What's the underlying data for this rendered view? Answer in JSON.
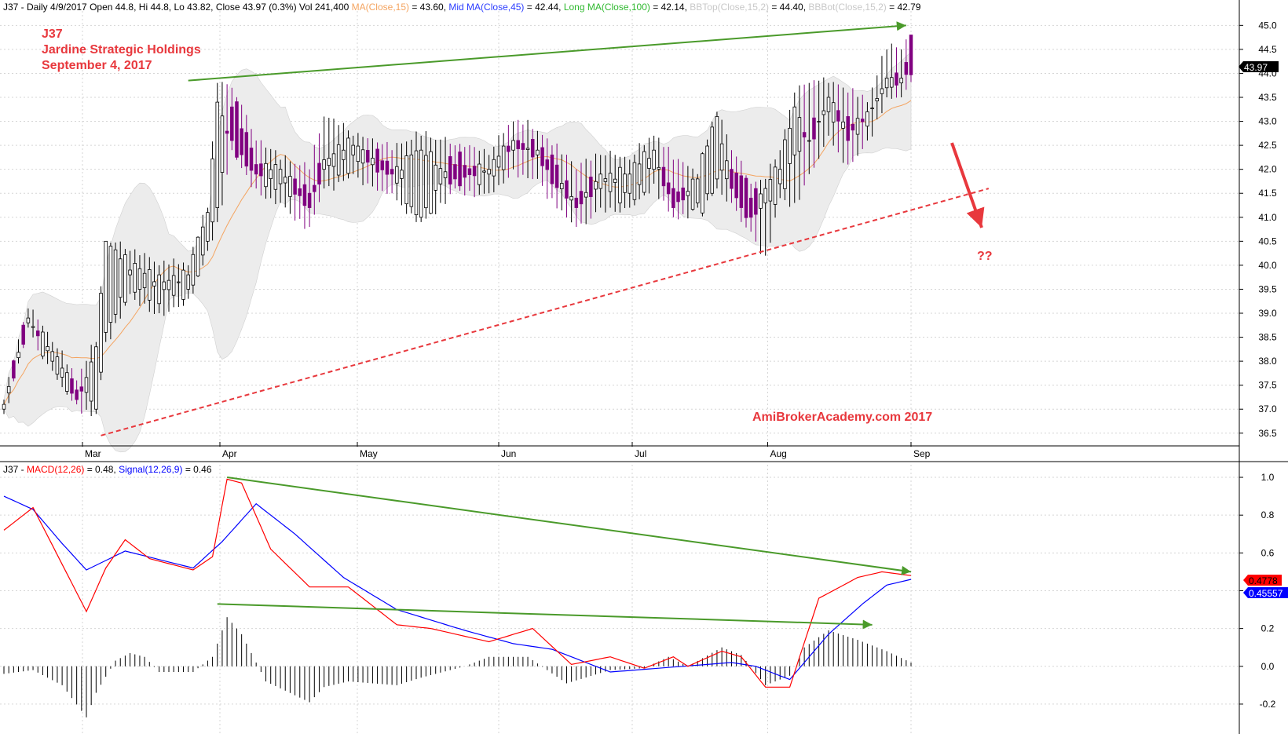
{
  "header": {
    "prefix": "J37 - Daily 4/9/2017 Open 44.8, Hi 44.8, Lo 43.82, Close 43.97 (0.3%) Vol 241,400",
    "ma_label": "MA(Close,15)",
    "ma_value": " = 43.60, ",
    "mid_ma_label": "Mid MA(Close,45)",
    "mid_ma_value": " = 42.44, ",
    "long_ma_label": "Long MA(Close,100)",
    "long_ma_value": " = 42.14, ",
    "bbtop_label": "BBTop(Close,15,2)",
    "bbtop_value": " = 44.40, ",
    "bbbot_label": "BBBot(Close,15,2)",
    "bbbot_value": " = 42.79"
  },
  "annotations": {
    "ticker": "J37",
    "company": "Jardine Strategic Holdings",
    "date": "September 4, 2017",
    "question": "??",
    "watermark": "AmiBrokerAcademy.com  2017"
  },
  "macd_header": {
    "prefix": "J37 - ",
    "macd_label": "MACD(12,26)",
    "macd_value": " = 0.48, ",
    "signal_label": "Signal(12,26,9)",
    "signal_value": " = 0.46"
  },
  "price_badge": "43.97",
  "macd_badge": "0.4778",
  "signal_badge": "0.45557",
  "colors": {
    "up_candle": "#ffffff",
    "down_candle": "#800080",
    "ma": "#f4a460",
    "band_fill": "#ececec",
    "trend_green": "#4a9a2a",
    "trend_red": "#e8383d",
    "macd": "#ff0000",
    "signal": "#0000ff",
    "text_red": "#e8383d"
  },
  "chart_data": [
    {
      "type": "candlestick",
      "title": "J37 - Daily",
      "x_axis_months": [
        "Mar",
        "Apr",
        "May",
        "Jun",
        "Jul",
        "Aug",
        "Sep"
      ],
      "y_ticks": [
        "45.0",
        "44.5",
        "44.0",
        "43.5",
        "43.0",
        "42.5",
        "42.0",
        "41.5",
        "41.0",
        "40.5",
        "40.0",
        "39.5",
        "39.0",
        "38.5",
        "38.0",
        "37.5",
        "37.0",
        "36.5"
      ],
      "ylim": [
        36.3,
        45.3
      ],
      "last_close": 43.97,
      "series": [
        {
          "name": "MA(Close,15)",
          "last": 43.6
        },
        {
          "name": "Mid MA(Close,45)",
          "last": 42.44
        },
        {
          "name": "Long MA(Close,100)",
          "last": 42.14
        },
        {
          "name": "BBTop(Close,15,2)",
          "last": 44.4
        },
        {
          "name": "BBBot(Close,15,2)",
          "last": 42.79
        }
      ],
      "trendlines": [
        {
          "color": "green",
          "from": [
            38,
            43.85
          ],
          "to": [
            186,
            45.0
          ]
        },
        {
          "color": "red",
          "style": "dashed",
          "from": [
            20,
            36.45
          ],
          "to": [
            203,
            41.6
          ]
        }
      ],
      "ohlc_anchors": [
        [
          0,
          37.0,
          37.2,
          36.9,
          37.1
        ],
        [
          5,
          38.8,
          39.1,
          38.7,
          38.9
        ],
        [
          10,
          38.0,
          38.4,
          37.8,
          38.2
        ],
        [
          15,
          37.4,
          37.6,
          37.1,
          37.2
        ],
        [
          19,
          37.0,
          38.4,
          36.9,
          38.3
        ],
        [
          21,
          38.6,
          40.5,
          38.4,
          40.5
        ],
        [
          26,
          39.8,
          40.3,
          39.4,
          39.9
        ],
        [
          32,
          39.2,
          40.0,
          39.0,
          39.8
        ],
        [
          38,
          39.5,
          40.0,
          39.3,
          39.8
        ],
        [
          42,
          40.5,
          41.2,
          40.3,
          41.1
        ],
        [
          44,
          41.2,
          43.8,
          40.9,
          43.4
        ],
        [
          47,
          43.3,
          43.7,
          42.4,
          42.6
        ],
        [
          52,
          42.1,
          42.6,
          41.6,
          41.9
        ],
        [
          57,
          41.7,
          42.2,
          41.3,
          42.0
        ],
        [
          63,
          41.5,
          42.0,
          40.8,
          41.2
        ],
        [
          66,
          42.0,
          43.1,
          41.6,
          42.2
        ],
        [
          72,
          42.3,
          42.7,
          41.9,
          42.5
        ],
        [
          80,
          42.0,
          42.4,
          41.5,
          41.9
        ],
        [
          86,
          41.0,
          42.7,
          40.9,
          42.4
        ],
        [
          93,
          42.1,
          42.5,
          41.6,
          41.8
        ],
        [
          100,
          41.9,
          42.3,
          41.5,
          42.0
        ],
        [
          105,
          42.4,
          43.0,
          42.0,
          42.6
        ],
        [
          110,
          42.3,
          42.8,
          41.8,
          42.4
        ],
        [
          113,
          42.3,
          42.5,
          41.4,
          41.7
        ],
        [
          118,
          41.4,
          42.0,
          40.8,
          41.2
        ],
        [
          123,
          41.6,
          42.3,
          41.2,
          41.9
        ],
        [
          129,
          41.5,
          42.2,
          41.2,
          41.9
        ],
        [
          134,
          42.0,
          42.7,
          41.7,
          42.4
        ],
        [
          138,
          41.6,
          42.2,
          41.0,
          41.2
        ],
        [
          143,
          41.3,
          41.9,
          41.2,
          41.8
        ],
        [
          147,
          41.8,
          43.2,
          41.6,
          43.1
        ],
        [
          150,
          42.0,
          42.4,
          41.3,
          41.6
        ],
        [
          154,
          41.4,
          41.7,
          40.7,
          41.0
        ],
        [
          157,
          41.3,
          41.8,
          40.2,
          41.6
        ],
        [
          160,
          41.7,
          42.4,
          41.4,
          42.0
        ],
        [
          163,
          42.3,
          43.6,
          41.3,
          43.3
        ],
        [
          166,
          42.6,
          43.8,
          41.9,
          42.6
        ],
        [
          170,
          43.2,
          43.8,
          42.7,
          43.5
        ],
        [
          174,
          43.1,
          43.6,
          42.1,
          42.6
        ],
        [
          178,
          42.9,
          43.4,
          42.6,
          43.2
        ],
        [
          182,
          43.7,
          44.5,
          43.5,
          43.9
        ],
        [
          185,
          43.8,
          44.5,
          43.5,
          43.9
        ],
        [
          187,
          44.8,
          44.8,
          43.82,
          43.97
        ]
      ]
    },
    {
      "type": "line",
      "title": "J37 - MACD(12,26)",
      "y_ticks": [
        "1.0",
        "0.8",
        "0.6",
        "0.4",
        "0.2",
        "0.0",
        "-0.2"
      ],
      "ylim": [
        -0.3,
        1.05
      ],
      "series": [
        {
          "name": "MACD(12,26)",
          "anchors": [
            [
              0,
              0.72
            ],
            [
              6,
              0.84
            ],
            [
              12,
              0.54
            ],
            [
              17,
              0.29
            ],
            [
              21,
              0.52
            ],
            [
              25,
              0.67
            ],
            [
              30,
              0.57
            ],
            [
              39,
              0.51
            ],
            [
              43,
              0.58
            ],
            [
              46,
              0.99
            ],
            [
              49,
              0.97
            ],
            [
              55,
              0.62
            ],
            [
              63,
              0.42
            ],
            [
              71,
              0.42
            ],
            [
              81,
              0.22
            ],
            [
              88,
              0.2
            ],
            [
              100,
              0.13
            ],
            [
              109,
              0.2
            ],
            [
              117,
              0.01
            ],
            [
              125,
              0.05
            ],
            [
              132,
              -0.01
            ],
            [
              138,
              0.05
            ],
            [
              141,
              0.0
            ],
            [
              148,
              0.08
            ],
            [
              152,
              0.05
            ],
            [
              157,
              -0.11
            ],
            [
              162,
              -0.11
            ],
            [
              168,
              0.36
            ],
            [
              176,
              0.47
            ],
            [
              181,
              0.5
            ],
            [
              187,
              0.48
            ]
          ]
        },
        {
          "name": "Signal(12,26,9)",
          "anchors": [
            [
              0,
              0.9
            ],
            [
              6,
              0.83
            ],
            [
              12,
              0.65
            ],
            [
              17,
              0.51
            ],
            [
              25,
              0.61
            ],
            [
              39,
              0.52
            ],
            [
              45,
              0.66
            ],
            [
              52,
              0.86
            ],
            [
              60,
              0.7
            ],
            [
              70,
              0.47
            ],
            [
              81,
              0.3
            ],
            [
              95,
              0.19
            ],
            [
              105,
              0.12
            ],
            [
              113,
              0.09
            ],
            [
              125,
              -0.03
            ],
            [
              140,
              0.0
            ],
            [
              150,
              0.02
            ],
            [
              155,
              0.0
            ],
            [
              162,
              -0.07
            ],
            [
              170,
              0.17
            ],
            [
              177,
              0.33
            ],
            [
              182,
              0.43
            ],
            [
              187,
              0.46
            ]
          ]
        },
        {
          "name": "histogram",
          "anchors": [
            [
              0,
              -0.04
            ],
            [
              6,
              -0.02
            ],
            [
              12,
              -0.1
            ],
            [
              17,
              -0.27
            ],
            [
              19,
              -0.14
            ],
            [
              23,
              0.03
            ],
            [
              26,
              0.07
            ],
            [
              29,
              0.05
            ],
            [
              32,
              -0.03
            ],
            [
              39,
              -0.03
            ],
            [
              43,
              0.05
            ],
            [
              46,
              0.26
            ],
            [
              49,
              0.17
            ],
            [
              54,
              -0.08
            ],
            [
              63,
              -0.19
            ],
            [
              66,
              -0.11
            ],
            [
              71,
              -0.08
            ],
            [
              81,
              -0.1
            ],
            [
              86,
              -0.06
            ],
            [
              95,
              0.0
            ],
            [
              100,
              0.05
            ],
            [
              108,
              0.05
            ],
            [
              116,
              -0.09
            ],
            [
              125,
              -0.02
            ],
            [
              132,
              -0.01
            ],
            [
              137,
              0.05
            ],
            [
              141,
              0.0
            ],
            [
              148,
              0.1
            ],
            [
              152,
              0.06
            ],
            [
              157,
              -0.1
            ],
            [
              162,
              -0.05
            ],
            [
              165,
              0.1
            ],
            [
              170,
              0.19
            ],
            [
              176,
              0.14
            ],
            [
              182,
              0.08
            ],
            [
              187,
              0.02
            ]
          ]
        }
      ],
      "trendlines": [
        {
          "color": "green",
          "from": [
            46,
            1.0
          ],
          "to": [
            187,
            0.5
          ]
        },
        {
          "color": "green",
          "from": [
            44,
            0.33
          ],
          "to": [
            179,
            0.22
          ]
        }
      ]
    }
  ]
}
